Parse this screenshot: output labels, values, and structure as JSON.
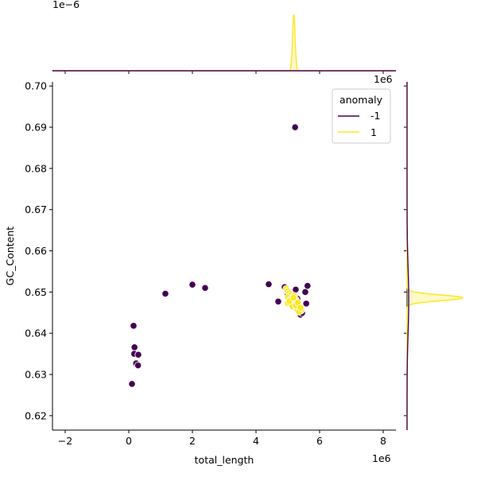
{
  "chart_data": {
    "type": "scatter",
    "title": "",
    "xlabel": "total_length",
    "ylabel": "GC_Content",
    "x_offset_label": "1e6",
    "y_offset_label": "",
    "top_marginal_offset_label": "1e−6",
    "right_marginal_offset_label": "1e6",
    "xlim": [
      -2400000,
      8400000
    ],
    "ylim": [
      0.6165,
      0.701
    ],
    "xticks": [
      -2000000,
      0,
      2000000,
      4000000,
      6000000,
      8000000
    ],
    "xtick_labels": [
      "−2",
      "0",
      "2",
      "4",
      "6",
      "8"
    ],
    "yticks": [
      0.62,
      0.63,
      0.64,
      0.65,
      0.66,
      0.67,
      0.68,
      0.69,
      0.7
    ],
    "ytick_labels": [
      "0.62",
      "0.63",
      "0.64",
      "0.65",
      "0.66",
      "0.67",
      "0.68",
      "0.69",
      "0.70"
    ],
    "grid": false,
    "legend": {
      "title": "anomaly",
      "placement": "top-right",
      "entries": [
        {
          "label": "-1",
          "color": "#440154"
        },
        {
          "label": "1",
          "color": "#fde725"
        }
      ]
    },
    "series": [
      {
        "name": "-1",
        "color": "#440154",
        "points": [
          [
            5230000,
            0.69
          ],
          [
            100000,
            0.6277
          ],
          [
            150000,
            0.6418
          ],
          [
            180000,
            0.6366
          ],
          [
            170000,
            0.635
          ],
          [
            300000,
            0.6348
          ],
          [
            230000,
            0.6327
          ],
          [
            290000,
            0.6322
          ],
          [
            1150000,
            0.6496
          ],
          [
            2000000,
            0.6518
          ],
          [
            2400000,
            0.651
          ],
          [
            4400000,
            0.6519
          ],
          [
            4900000,
            0.6512
          ],
          [
            5250000,
            0.6506
          ],
          [
            5620000,
            0.6515
          ],
          [
            5550000,
            0.65
          ],
          [
            4700000,
            0.6477
          ],
          [
            5580000,
            0.6472
          ],
          [
            5400000,
            0.6445
          ],
          [
            5450000,
            0.6449
          ],
          [
            5000000,
            0.6494
          ],
          [
            5150000,
            0.6488
          ],
          [
            5300000,
            0.6484
          ],
          [
            5050000,
            0.6472
          ],
          [
            5350000,
            0.6465
          ]
        ]
      },
      {
        "name": "1",
        "color": "#fde725",
        "points": [
          [
            4950000,
            0.6508
          ],
          [
            5000000,
            0.6502
          ],
          [
            5050000,
            0.6497
          ],
          [
            5100000,
            0.6493
          ],
          [
            5200000,
            0.6491
          ],
          [
            5000000,
            0.6487
          ],
          [
            5120000,
            0.6484
          ],
          [
            5250000,
            0.6482
          ],
          [
            5050000,
            0.6479
          ],
          [
            5180000,
            0.6477
          ],
          [
            5300000,
            0.6475
          ],
          [
            5000000,
            0.6473
          ],
          [
            5100000,
            0.6471
          ],
          [
            5220000,
            0.6469
          ],
          [
            5350000,
            0.6467
          ],
          [
            5150000,
            0.6465
          ],
          [
            5280000,
            0.6463
          ],
          [
            5050000,
            0.6478
          ],
          [
            5380000,
            0.646
          ],
          [
            5300000,
            0.6457
          ],
          [
            5420000,
            0.6455
          ],
          [
            5350000,
            0.6452
          ],
          [
            5250000,
            0.6468
          ],
          [
            5180000,
            0.6486
          ],
          [
            5320000,
            0.6474
          ],
          [
            5400000,
            0.6462
          ]
        ]
      }
    ],
    "top_marginal": {
      "type": "kde",
      "series": [
        {
          "name": "1",
          "center": 5190000,
          "width": 40000,
          "height": 1.0
        },
        {
          "name": "-1",
          "center": 4000000,
          "width": 1500000,
          "height": 0.0
        }
      ]
    },
    "right_marginal": {
      "type": "kde",
      "series": [
        {
          "name": "1",
          "center": 0.6486,
          "width": 0.0007,
          "height": 1.0,
          "fill": true
        },
        {
          "name": "-1",
          "center": 0.648,
          "width": 0.008,
          "height": 0.03,
          "fill": false
        }
      ]
    }
  }
}
